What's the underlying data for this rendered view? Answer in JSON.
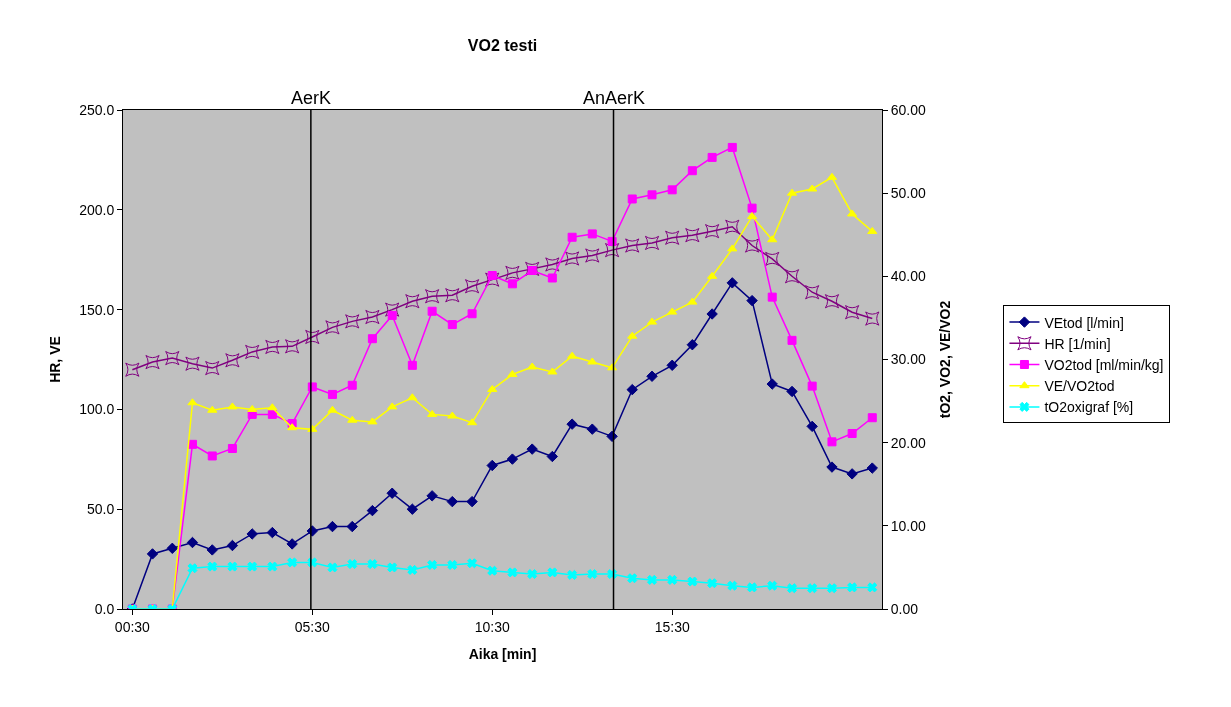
{
  "chart_data": {
    "type": "line",
    "title": "VO2 testi",
    "xlabel": "Aika [min]",
    "ylabel": "HR, VE",
    "y2label": "tO2, VO2, VE/VO2",
    "x": [
      0.5,
      1.06,
      1.61,
      2.17,
      2.72,
      3.28,
      3.83,
      4.39,
      4.94,
      5.5,
      6.06,
      6.61,
      7.17,
      7.72,
      8.28,
      8.83,
      9.39,
      9.94,
      10.5,
      11.06,
      11.61,
      12.17,
      12.72,
      13.28,
      13.83,
      14.39,
      14.94,
      15.5,
      16.06,
      16.61,
      17.17,
      17.72,
      18.28,
      18.83,
      19.39,
      19.94,
      20.5,
      21.06
    ],
    "xlim": [
      0.24,
      21.33
    ],
    "xticks": [
      {
        "value": 0.5,
        "label": "00:30"
      },
      {
        "value": 5.5,
        "label": "05:30"
      },
      {
        "value": 10.5,
        "label": "10:30"
      },
      {
        "value": 15.5,
        "label": "15:30"
      }
    ],
    "ylim": [
      0,
      250
    ],
    "yticks": [
      {
        "value": 0,
        "label": "0.0"
      },
      {
        "value": 50,
        "label": "50.0"
      },
      {
        "value": 100,
        "label": "100.0"
      },
      {
        "value": 150,
        "label": "150.0"
      },
      {
        "value": 200,
        "label": "200.0"
      },
      {
        "value": 250,
        "label": "250.0"
      }
    ],
    "y2lim": [
      0,
      60
    ],
    "y2ticks": [
      {
        "value": 0,
        "label": "0.00"
      },
      {
        "value": 10,
        "label": "10.00"
      },
      {
        "value": 20,
        "label": "20.00"
      },
      {
        "value": 30,
        "label": "30.00"
      },
      {
        "value": 40,
        "label": "40.00"
      },
      {
        "value": 50,
        "label": "50.00"
      },
      {
        "value": 60,
        "label": "60.00"
      }
    ],
    "grid": false,
    "legend": "right",
    "line_style": "solid",
    "ref_lines": [
      {
        "axis": "x",
        "value": 5.46,
        "label": "AerK",
        "color": "#000000"
      },
      {
        "axis": "x",
        "value": 13.87,
        "label": "AnAerK",
        "color": "#000000"
      }
    ],
    "series": [
      {
        "name": "VEtod [l/min]",
        "color": "#000080",
        "marker": "diamond",
        "values": [
          0,
          27.6,
          30.4,
          33.3,
          29.6,
          31.8,
          37.6,
          38.3,
          32.6,
          39.1,
          41.3,
          41.3,
          49.3,
          58,
          50,
          56.7,
          53.8,
          53.8,
          71.9,
          75.1,
          80.1,
          76.4,
          92.6,
          90.1,
          86.5,
          109.9,
          116.6,
          122.1,
          132.4,
          147.8,
          163.4,
          154.5,
          112.7,
          109,
          91.5,
          71.1,
          67.7,
          70.6
        ]
      },
      {
        "name": "HR [1/min]",
        "color": "#800080",
        "marker": "star",
        "values": [
          119.9,
          123.7,
          125.7,
          122.9,
          120.7,
          124.6,
          128.8,
          131.3,
          131.6,
          136.3,
          141.1,
          144.1,
          146.3,
          150,
          154.2,
          156.7,
          157.2,
          161.7,
          165,
          168.4,
          170.4,
          172.6,
          175.6,
          177.1,
          179.8,
          182.1,
          183.4,
          186,
          187.3,
          189.3,
          191.5,
          182.1,
          175.4,
          166.7,
          158.7,
          154.2,
          148.7,
          145.5
        ]
      },
      {
        "name": "VO2tod [ml/min/kg]",
        "color": "#ff00ff",
        "marker": "square",
        "axis": "y2",
        "values": [
          0,
          0,
          0,
          19.8,
          18.4,
          19.3,
          23.4,
          23.4,
          22.3,
          26.7,
          25.8,
          26.9,
          32.5,
          35.3,
          29.3,
          35.8,
          34.2,
          35.5,
          40.1,
          39.1,
          40.7,
          39.8,
          44.7,
          45.1,
          44.2,
          49.3,
          49.8,
          50.4,
          52.7,
          54.3,
          55.5,
          48.2,
          37.5,
          32.3,
          26.8,
          20.1,
          21.1,
          23.0
        ]
      },
      {
        "name": "VE/VO2tod",
        "color": "#ffff00",
        "marker": "triangle",
        "axis": "y2",
        "values": [
          0,
          0,
          0,
          24.8,
          23.9,
          24.3,
          24.0,
          24.2,
          21.8,
          21.6,
          23.9,
          22.7,
          22.5,
          24.3,
          25.4,
          23.4,
          23.2,
          22.4,
          26.4,
          28.2,
          29.1,
          28.5,
          30.4,
          29.7,
          29.0,
          32.8,
          34.5,
          35.7,
          36.9,
          40.0,
          43.3,
          47.2,
          44.4,
          50.0,
          50.5,
          51.9,
          47.5,
          45.4
        ]
      },
      {
        "name": "tO2oxigraf [%]",
        "color": "#00ffff",
        "marker": "cross",
        "axis": "y2",
        "values": [
          0,
          0,
          0,
          4.9,
          5.1,
          5.1,
          5.1,
          5.1,
          5.6,
          5.6,
          5.0,
          5.4,
          5.4,
          5.0,
          4.7,
          5.3,
          5.3,
          5.5,
          4.6,
          4.4,
          4.2,
          4.4,
          4.1,
          4.2,
          4.2,
          3.7,
          3.5,
          3.5,
          3.3,
          3.1,
          2.8,
          2.6,
          2.8,
          2.5,
          2.5,
          2.5,
          2.6,
          2.6
        ]
      }
    ]
  }
}
